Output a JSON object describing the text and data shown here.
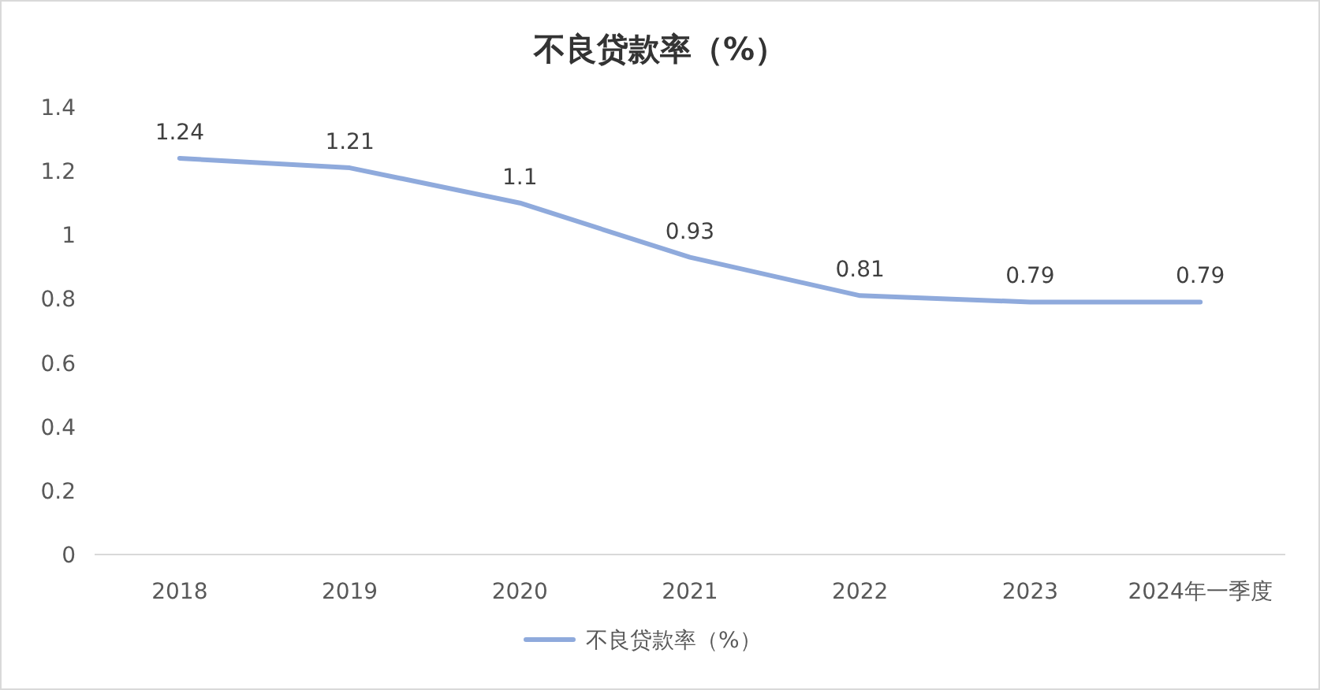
{
  "chart_data": {
    "type": "line",
    "title": "不良贷款率（%）",
    "categories": [
      "2018",
      "2019",
      "2020",
      "2021",
      "2022",
      "2023",
      "2024年一季度"
    ],
    "series": [
      {
        "name": "不良贷款率（%）",
        "color": "#8faadc",
        "values": [
          1.24,
          1.21,
          1.1,
          0.93,
          0.81,
          0.79,
          0.79
        ]
      }
    ],
    "ylim": [
      0,
      1.4
    ],
    "yticks": [
      0,
      0.2,
      0.4,
      0.6,
      0.8,
      1,
      1.2,
      1.4
    ],
    "data_labels": true,
    "legend": "bottom",
    "grid": false,
    "marker": "none",
    "line_style": "solid"
  }
}
